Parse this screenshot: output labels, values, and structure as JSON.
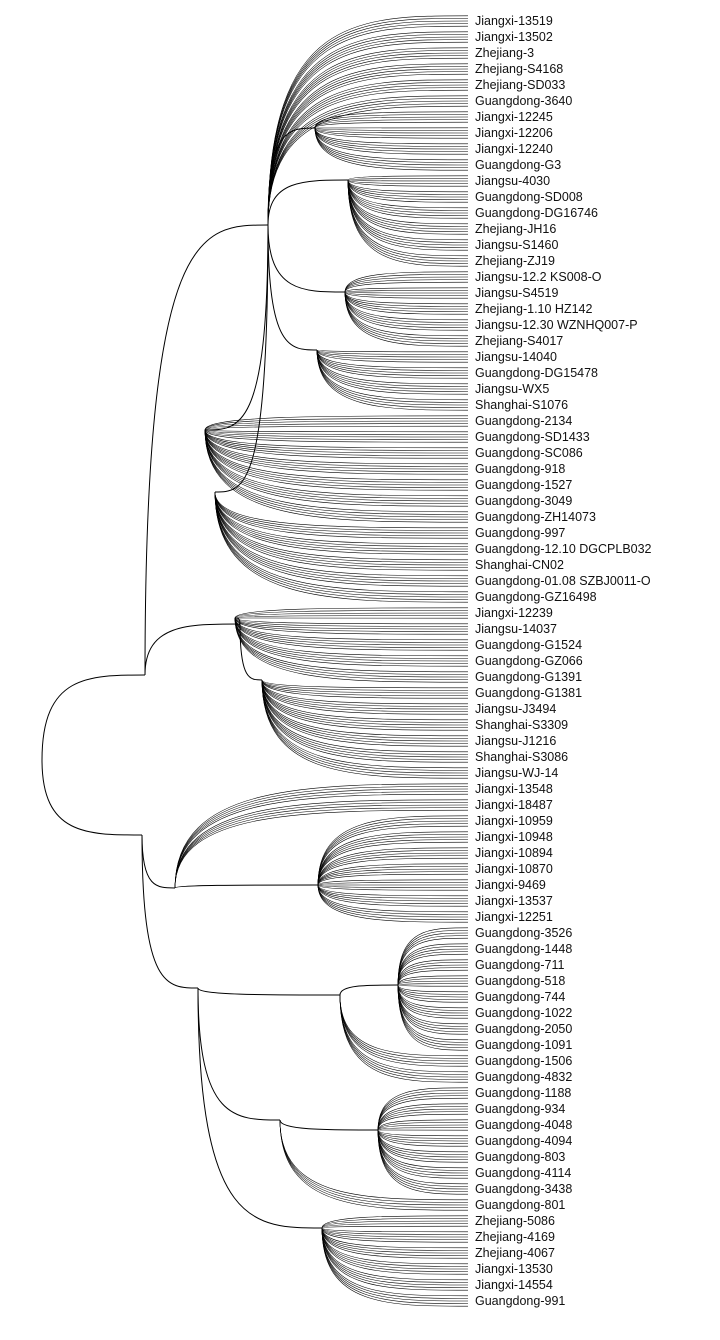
{
  "tree": {
    "layout": "curved-dendrogram",
    "line_color": "#000000",
    "leaves": [
      "Jiangxi-13519",
      "Jiangxi-13502",
      "Zhejiang-3",
      "Zhejiang-S4168",
      "Zhejiang-SD033",
      "Guangdong-3640",
      "Jiangxi-12245",
      "Jiangxi-12206",
      "Jiangxi-12240",
      "Guangdong-G3",
      "Jiangsu-4030",
      "Guangdong-SD008",
      "Guangdong-DG16746",
      "Zhejiang-JH16",
      "Jiangsu-S1460",
      "Zhejiang-ZJ19",
      "Jiangsu-12.2 KS008-O",
      "Jiangsu-S4519",
      "Zhejiang-1.10 HZ142",
      "Jiangsu-12.30 WZNHQ007-P",
      "Zhejiang-S4017",
      "Jiangsu-14040",
      "Guangdong-DG15478",
      "Jiangsu-WX5",
      "Shanghai-S1076",
      "Guangdong-2134",
      "Guangdong-SD1433",
      "Guangdong-SC086",
      "Guangdong-918",
      "Guangdong-1527",
      "Guangdong-3049",
      "Guangdong-ZH14073",
      "Guangdong-997",
      "Guangdong-12.10 DGCPLB032",
      "Shanghai-CN02",
      "Guangdong-01.08 SZBJ0011-O",
      "Guangdong-GZ16498",
      "Jiangxi-12239",
      "Jiangsu-14037",
      "Guangdong-G1524",
      "Guangdong-GZ066",
      "Guangdong-G1391",
      "Guangdong-G1381",
      "Jiangsu-J3494",
      "Shanghai-S3309",
      "Jiangsu-J1216",
      "Shanghai-S3086",
      "Jiangsu-WJ-14",
      "Jiangxi-13548",
      "Jiangxi-18487",
      "Jiangxi-10959",
      "Jiangxi-10948",
      "Jiangxi-10894",
      "Jiangxi-10870",
      "Jiangxi-9469",
      "Jiangxi-13537",
      "Jiangxi-12251",
      "Guangdong-3526",
      "Guangdong-1448",
      "Guangdong-711",
      "Guangdong-518",
      "Guangdong-744",
      "Guangdong-1022",
      "Guangdong-2050",
      "Guangdong-1091",
      "Guangdong-1506",
      "Guangdong-4832",
      "Guangdong-1188",
      "Guangdong-934",
      "Guangdong-4048",
      "Guangdong-4094",
      "Guangdong-803",
      "Guangdong-4114",
      "Guangdong-3438",
      "Guangdong-801",
      "Zhejiang-5086",
      "Zhejiang-4169",
      "Zhejiang-4067",
      "Jiangxi-13530",
      "Jiangxi-14554",
      "Guangdong-991"
    ]
  }
}
